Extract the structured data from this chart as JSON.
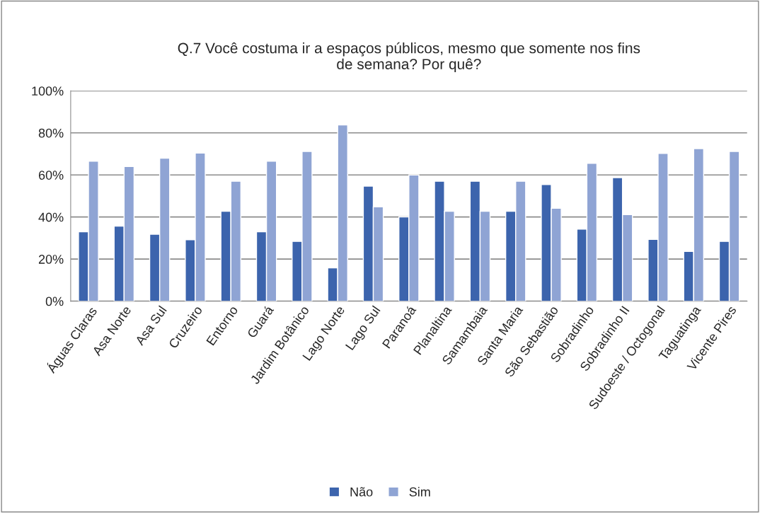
{
  "chart_data": {
    "type": "bar",
    "title": "Q.7 Você costuma ir a espaços públicos, mesmo que somente nos fins\nde semana? Por quê?",
    "categories": [
      "Águas Claras",
      "Asa Norte",
      "Asa Sul",
      "Cruzeiro",
      "Entorno",
      "Guará",
      "Jardim Botânico",
      "Lago Norte",
      "Lago Sul",
      "Paranoá",
      "Planaltina",
      "Samambaia",
      "Santa Maria",
      "São Sebastião",
      "Sobradinho",
      "Sobradinho II",
      "Sudoeste / Octogonal",
      "Taguatinga",
      "Vicente Pires"
    ],
    "series": [
      {
        "name": "Não",
        "color": "#3c64ad",
        "values": [
          33.0,
          35.7,
          31.8,
          29.2,
          42.7,
          33.0,
          28.4,
          15.8,
          54.7,
          40.0,
          57.0,
          57.0,
          42.7,
          55.4,
          34.2,
          58.7,
          29.4,
          23.6,
          28.4
        ]
      },
      {
        "name": "Sim",
        "color": "#8fa4d4",
        "values": [
          66.5,
          64.0,
          68.0,
          70.4,
          57.0,
          66.5,
          71.2,
          83.8,
          44.8,
          60.0,
          42.7,
          42.7,
          57.0,
          44.2,
          65.5,
          41.1,
          70.2,
          72.5,
          71.2
        ]
      }
    ],
    "ylim": [
      0,
      100
    ],
    "yticks": [
      {
        "value": 0,
        "label": "0%"
      },
      {
        "value": 20,
        "label": "20%"
      },
      {
        "value": 40,
        "label": "40%"
      },
      {
        "value": 60,
        "label": "60%"
      },
      {
        "value": 80,
        "label": "80%"
      },
      {
        "value": 100,
        "label": "100%"
      }
    ],
    "grid": "y",
    "legend": "bottom"
  }
}
